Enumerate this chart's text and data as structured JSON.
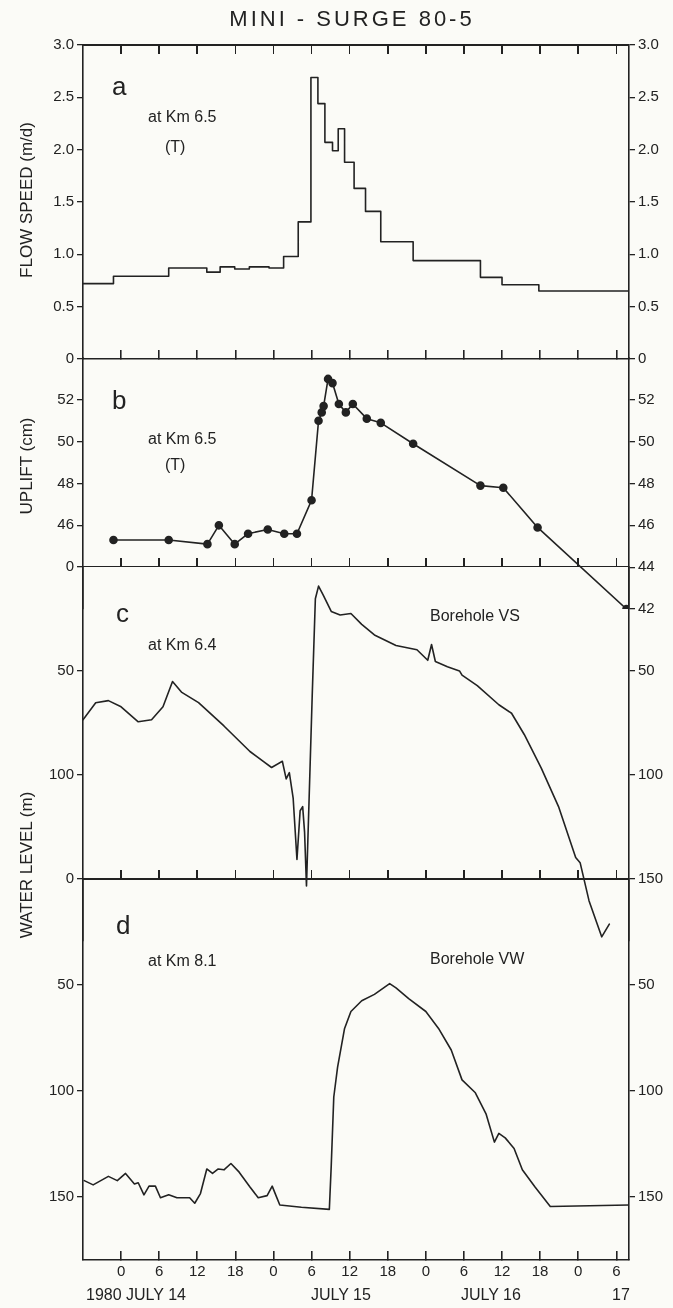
{
  "chart_data": [
    {
      "type": "step",
      "title": "MINI - SURGE 80-5",
      "ylabel": "FLOW SPEED (m/d)",
      "annotations": [
        "a",
        "at Km 6.5",
        "(T)"
      ],
      "x": [
        "1980-07-13T18:00",
        "1980-07-13T22:48",
        "1980-07-14T07:30",
        "1980-07-14T13:30",
        "1980-07-14T15:36",
        "1980-07-14T17:54",
        "1980-07-14T20:12",
        "1980-07-14T23:18",
        "1980-07-15T01:36",
        "1980-07-15T03:54",
        "1980-07-15T05:54",
        "1980-07-15T07:00",
        "1980-07-15T08:06",
        "1980-07-15T09:18",
        "1980-07-15T10:12",
        "1980-07-15T11:12",
        "1980-07-15T12:42",
        "1980-07-15T14:30",
        "1980-07-15T16:54",
        "1980-07-15T22:00",
        "1980-07-16T08:36",
        "1980-07-16T12:00",
        "1980-07-16T17:48",
        "1980-07-17T08:00"
      ],
      "series": [
        {
          "color": "#222222",
          "values": [
            0.72,
            0.79,
            0.87,
            0.83,
            0.88,
            0.86,
            0.88,
            0.87,
            0.98,
            1.31,
            2.69,
            2.44,
            2.07,
            1.99,
            2.2,
            1.88,
            1.63,
            1.41,
            1.12,
            0.94,
            0.78,
            0.71,
            0.65,
            0.65
          ]
        }
      ],
      "xlim": [
        "1980-07-13T18:00",
        "1980-07-17T08:00"
      ],
      "xticks": [
        {
          "value": "1980-07-14T00:00",
          "label": null
        },
        {
          "value": "1980-07-14T06:00",
          "label": null
        },
        {
          "value": "1980-07-14T12:00",
          "label": null
        },
        {
          "value": "1980-07-14T18:00",
          "label": null
        },
        {
          "value": "1980-07-15T00:00",
          "label": null
        },
        {
          "value": "1980-07-15T06:00",
          "label": null
        },
        {
          "value": "1980-07-15T12:00",
          "label": null
        },
        {
          "value": "1980-07-15T18:00",
          "label": null
        },
        {
          "value": "1980-07-16T00:00",
          "label": null
        },
        {
          "value": "1980-07-16T06:00",
          "label": null
        },
        {
          "value": "1980-07-16T12:00",
          "label": null
        },
        {
          "value": "1980-07-16T18:00",
          "label": null
        },
        {
          "value": "1980-07-17T00:00",
          "label": null
        },
        {
          "value": "1980-07-17T06:00",
          "label": null
        }
      ],
      "ylim": [
        0,
        3
      ],
      "yticks": [
        0,
        0.5,
        {
          "value": 1,
          "label": "1.0"
        },
        1.5,
        {
          "value": 2,
          "label": "2.0"
        },
        2.5,
        {
          "value": 3,
          "label": "3.0"
        }
      ],
      "y2lim": [
        0,
        3
      ],
      "y2ticks": [
        0,
        0.5,
        {
          "value": 1,
          "label": "1.0"
        },
        1.5,
        {
          "value": 2,
          "label": "2.0"
        },
        2.5,
        {
          "value": 3,
          "label": "3.0"
        }
      ],
      "tick_labels": "y",
      "grid": false,
      "legend": false
    },
    {
      "type": "line",
      "ylabel": "UPLIFT (cm)",
      "annotations": [
        "b",
        "at Km 6.5",
        "(T)"
      ],
      "marker": "circle",
      "x": [
        "1980-07-13T22:48",
        "1980-07-14T07:30",
        "1980-07-14T13:36",
        "1980-07-14T15:24",
        "1980-07-14T17:54",
        "1980-07-14T20:00",
        "1980-07-14T23:06",
        "1980-07-15T01:42",
        "1980-07-15T03:42",
        "1980-07-15T06:00",
        "1980-07-15T07:06",
        "1980-07-15T07:36",
        "1980-07-15T07:54",
        "1980-07-15T08:36",
        "1980-07-15T09:18",
        "1980-07-15T10:18",
        "1980-07-15T11:24",
        "1980-07-15T12:30",
        "1980-07-15T14:42",
        "1980-07-15T16:54",
        "1980-07-15T22:00",
        "1980-07-16T08:36",
        "1980-07-16T12:12",
        "1980-07-16T17:36",
        "1980-07-17T07:36"
      ],
      "series": [
        {
          "color": "#222222",
          "values": [
            45.3,
            45.3,
            45.1,
            46.0,
            45.1,
            45.6,
            45.8,
            45.6,
            45.6,
            47.2,
            51.0,
            51.4,
            51.7,
            53.0,
            52.8,
            51.8,
            51.4,
            51.8,
            51.1,
            50.9,
            49.9,
            47.9,
            47.8,
            45.9,
            42.0
          ]
        }
      ],
      "xlim": [
        "1980-07-13T18:00",
        "1980-07-17T08:00"
      ],
      "xticks": [
        {
          "value": "1980-07-14T00:00",
          "label": null
        },
        {
          "value": "1980-07-14T06:00",
          "label": null
        },
        {
          "value": "1980-07-14T12:00",
          "label": null
        },
        {
          "value": "1980-07-14T18:00",
          "label": null
        },
        {
          "value": "1980-07-15T00:00",
          "label": null
        },
        {
          "value": "1980-07-15T06:00",
          "label": null
        },
        {
          "value": "1980-07-15T12:00",
          "label": null
        },
        {
          "value": "1980-07-15T18:00",
          "label": null
        },
        {
          "value": "1980-07-16T00:00",
          "label": null
        },
        {
          "value": "1980-07-16T06:00",
          "label": null
        },
        {
          "value": "1980-07-16T12:00",
          "label": null
        },
        {
          "value": "1980-07-16T18:00",
          "label": null
        },
        {
          "value": "1980-07-17T00:00",
          "label": null
        },
        {
          "value": "1980-07-17T06:00",
          "label": null
        }
      ],
      "ylim": [
        42,
        54
      ],
      "yticks": [
        46,
        48,
        50,
        52
      ],
      "y2lim": [
        42,
        54
      ],
      "y2ticks": [
        42,
        44,
        46,
        48,
        50,
        52
      ],
      "tick_labels": "y",
      "grid": false,
      "legend": false
    },
    {
      "type": "line",
      "ylabel": "WATER LEVEL (m)",
      "annotations": [
        "c",
        "at Km 6.4",
        "Borehole VS"
      ],
      "marker": "none",
      "x": [
        "1980-07-13T18:00",
        "1980-07-13T20:00",
        "1980-07-13T22:00",
        "1980-07-14T00:00",
        "1980-07-14T02:42",
        "1980-07-14T04:48",
        "1980-07-14T06:36",
        "1980-07-14T08:06",
        "1980-07-14T09:30",
        "1980-07-14T12:12",
        "1980-07-14T16:12",
        "1980-07-14T20:18",
        "1980-07-14T23:42",
        "1980-07-15T01:24",
        "1980-07-15T02:00",
        "1980-07-15T02:30",
        "1980-07-15T03:06",
        "1980-07-15T03:42",
        "1980-07-15T04:12",
        "1980-07-15T04:36",
        "1980-07-15T04:54",
        "1980-07-15T05:12",
        "1980-07-15T06:06",
        "1980-07-15T06:36",
        "1980-07-15T07:06",
        "1980-07-15T07:48",
        "1980-07-15T09:06",
        "1980-07-15T10:30",
        "1980-07-15T12:12",
        "1980-07-15T13:54",
        "1980-07-15T15:54",
        "1980-07-15T19:18",
        "1980-07-15T22:36",
        "1980-07-16T00:18",
        "1980-07-16T00:54",
        "1980-07-16T01:30",
        "1980-07-16T03:24",
        "1980-07-16T05:18",
        "1980-07-16T05:42",
        "1980-07-16T08:06",
        "1980-07-16T11:30",
        "1980-07-16T13:30",
        "1980-07-16T15:30",
        "1980-07-16T18:12",
        "1980-07-16T20:54",
        "1980-07-16T23:36",
        "1980-07-17T00:18",
        "1980-07-17T01:42",
        "1980-07-17T03:42",
        "1980-07-17T04:54"
      ],
      "series": [
        {
          "color": "#222222",
          "values": [
            73.5,
            65.3,
            64.3,
            67.3,
            74.5,
            73.5,
            67.3,
            55.1,
            60.2,
            65.3,
            76.5,
            88.8,
            96.5,
            93.5,
            102.0,
            99.0,
            111.2,
            140.8,
            117.3,
            115.3,
            127.6,
            153.5,
            62.2,
            15.3,
            9.2,
            13.3,
            21.4,
            23.1,
            22.4,
            27.6,
            32.7,
            37.8,
            39.8,
            44.9,
            37.3,
            45.5,
            48.0,
            50.0,
            52.0,
            57.1,
            66.3,
            70.4,
            80.6,
            96.9,
            115.3,
            139.8,
            142.3,
            160.6,
            178.0,
            171.9
          ]
        }
      ],
      "xlim": [
        "1980-07-13T18:00",
        "1980-07-17T08:00"
      ],
      "xticks": [
        {
          "value": "1980-07-14T00:00",
          "label": null
        },
        {
          "value": "1980-07-14T06:00",
          "label": null
        },
        {
          "value": "1980-07-14T12:00",
          "label": null
        },
        {
          "value": "1980-07-14T18:00",
          "label": null
        },
        {
          "value": "1980-07-15T00:00",
          "label": null
        },
        {
          "value": "1980-07-15T06:00",
          "label": null
        },
        {
          "value": "1980-07-15T12:00",
          "label": null
        },
        {
          "value": "1980-07-15T18:00",
          "label": null
        },
        {
          "value": "1980-07-16T00:00",
          "label": null
        },
        {
          "value": "1980-07-16T06:00",
          "label": null
        },
        {
          "value": "1980-07-16T12:00",
          "label": null
        },
        {
          "value": "1980-07-16T18:00",
          "label": null
        },
        {
          "value": "1980-07-17T00:00",
          "label": null
        },
        {
          "value": "1980-07-17T06:00",
          "label": null
        }
      ],
      "ylim": [
        180,
        0
      ],
      "yticks": [
        0,
        50,
        100
      ],
      "y2lim": [
        180,
        0
      ],
      "y2ticks": [
        50,
        100,
        150
      ],
      "tick_labels": "y",
      "grid": false,
      "legend": false
    },
    {
      "type": "line",
      "annotations": [
        "d",
        "at Km 8.1",
        "Borehole VW",
        "1980 JULY 14",
        "JULY 15",
        "JULY 16",
        "17"
      ],
      "marker": "none",
      "x": [
        "1980-07-13T18:12",
        "1980-07-13T19:36",
        "1980-07-13T22:00",
        "1980-07-13T23:24",
        "1980-07-14T00:42",
        "1980-07-14T02:06",
        "1980-07-14T02:42",
        "1980-07-14T03:36",
        "1980-07-14T04:24",
        "1980-07-14T05:24",
        "1980-07-14T06:12",
        "1980-07-14T07:30",
        "1980-07-14T08:48",
        "1980-07-14T10:48",
        "1980-07-14T11:36",
        "1980-07-14T12:30",
        "1980-07-14T13:30",
        "1980-07-14T14:24",
        "1980-07-14T15:18",
        "1980-07-14T16:12",
        "1980-07-14T17:18",
        "1980-07-14T18:36",
        "1980-07-14T20:18",
        "1980-07-14T21:36",
        "1980-07-14T23:00",
        "1980-07-14T23:48",
        "1980-07-15T00:24",
        "1980-07-15T01:00",
        "1980-07-15T04:24",
        "1980-07-15T08:48",
        "1980-07-15T09:06",
        "1980-07-15T09:30",
        "1980-07-15T10:06",
        "1980-07-15T11:12",
        "1980-07-15T12:12",
        "1980-07-15T13:54",
        "1980-07-15T15:54",
        "1980-07-15T18:18",
        "1980-07-15T19:18",
        "1980-07-15T21:18",
        "1980-07-16T00:00",
        "1980-07-16T02:00",
        "1980-07-16T04:00",
        "1980-07-16T05:42",
        "1980-07-16T07:48",
        "1980-07-16T09:30",
        "1980-07-16T10:48",
        "1980-07-16T11:30",
        "1980-07-16T12:30",
        "1980-07-16T13:54",
        "1980-07-16T15:12",
        "1980-07-16T17:12",
        "1980-07-16T19:36",
        "1980-07-17T08:00"
      ],
      "series": [
        {
          "color": "#222222",
          "values": [
            142.5,
            144.5,
            140.5,
            142.5,
            139.1,
            144.1,
            143.5,
            149.2,
            145.1,
            145.1,
            150.6,
            149.2,
            150.6,
            150.6,
            153.2,
            148.6,
            137.0,
            139.1,
            137.0,
            137.4,
            134.4,
            138.5,
            145.5,
            150.6,
            149.6,
            145.1,
            149.6,
            154.0,
            155.1,
            156.1,
            135.4,
            103.0,
            88.9,
            70.6,
            62.6,
            57.5,
            54.5,
            49.4,
            51.4,
            56.5,
            62.6,
            70.6,
            80.8,
            94.9,
            101.0,
            111.1,
            124.3,
            120.2,
            122.3,
            127.3,
            137.4,
            145.5,
            154.7,
            154.0
          ]
        }
      ],
      "xlim": [
        "1980-07-13T18:00",
        "1980-07-17T08:00"
      ],
      "xticks": [
        {
          "value": "1980-07-14T00:00",
          "label": "0"
        },
        {
          "value": "1980-07-14T06:00",
          "label": "6"
        },
        {
          "value": "1980-07-14T12:00",
          "label": "12"
        },
        {
          "value": "1980-07-14T18:00",
          "label": "18"
        },
        {
          "value": "1980-07-15T00:00",
          "label": "0"
        },
        {
          "value": "1980-07-15T06:00",
          "label": "6"
        },
        {
          "value": "1980-07-15T12:00",
          "label": "12"
        },
        {
          "value": "1980-07-15T18:00",
          "label": "18"
        },
        {
          "value": "1980-07-16T00:00",
          "label": "0"
        },
        {
          "value": "1980-07-16T06:00",
          "label": "6"
        },
        {
          "value": "1980-07-16T12:00",
          "label": "12"
        },
        {
          "value": "1980-07-16T18:00",
          "label": "18"
        },
        {
          "value": "1980-07-17T00:00",
          "label": "0"
        },
        {
          "value": "1980-07-17T06:00",
          "label": "6"
        }
      ],
      "ylim": [
        180,
        0
      ],
      "yticks": [
        0,
        50,
        100,
        150
      ],
      "y2lim": [
        180,
        0
      ],
      "y2ticks": [
        50,
        100,
        150
      ],
      "grid": false,
      "legend": false
    }
  ]
}
